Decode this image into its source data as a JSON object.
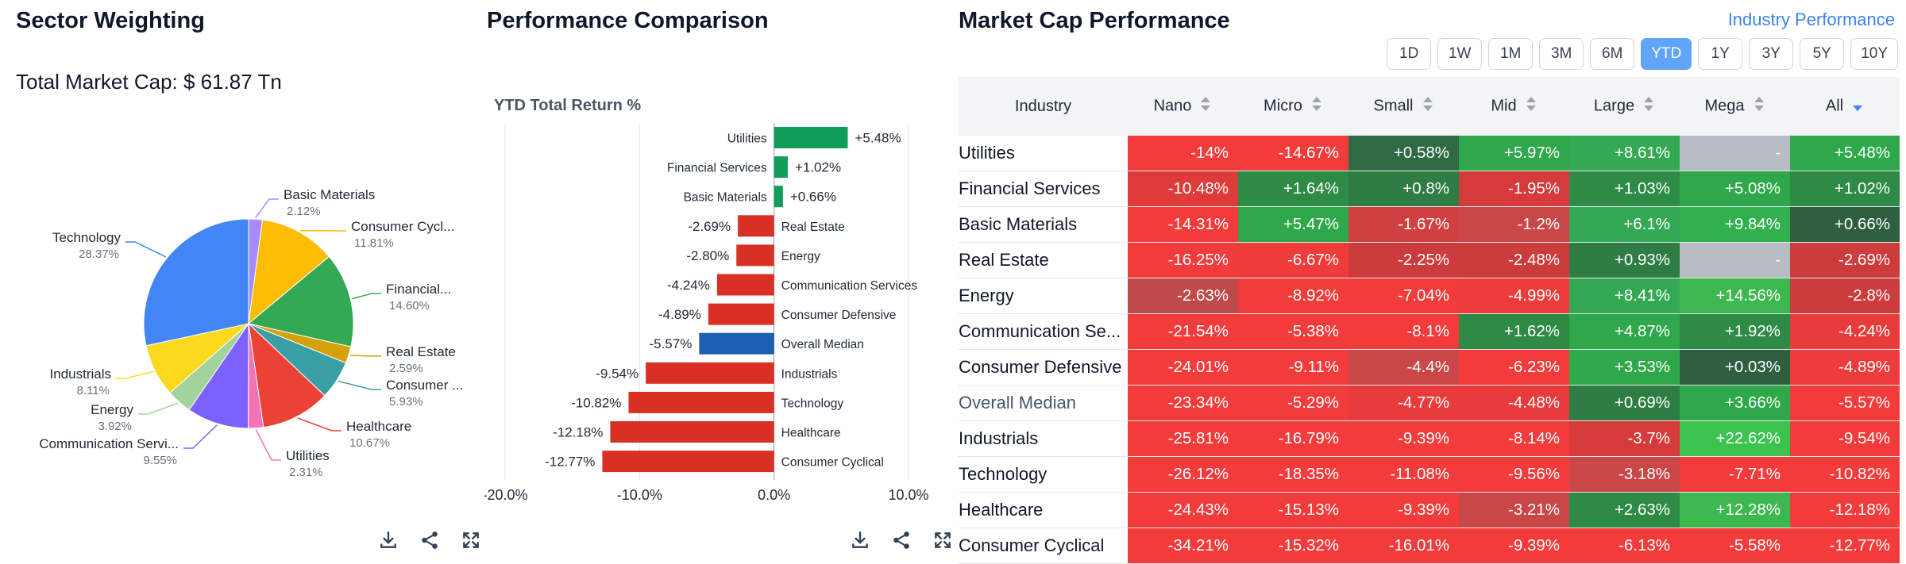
{
  "sector": {
    "title": "Sector Weighting",
    "total_label": "Total Market Cap: $ 61.87 Tn",
    "slices": [
      {
        "name": "Basic Materials",
        "label": "Basic Materials",
        "pct": 2.12,
        "pct_label": "2.12%",
        "color": "#a78bfa"
      },
      {
        "name": "Consumer Cyclical",
        "label": "Consumer Cycl...",
        "pct": 11.81,
        "pct_label": "11.81%",
        "color": "#fbbc04"
      },
      {
        "name": "Financial Services",
        "label": "Financial...",
        "pct": 14.6,
        "pct_label": "14.60%",
        "color": "#34a853"
      },
      {
        "name": "Real Estate",
        "label": "Real Estate",
        "pct": 2.59,
        "pct_label": "2.59%",
        "color": "#d4a10b"
      },
      {
        "name": "Consumer Defensive",
        "label": "Consumer ...",
        "pct": 5.93,
        "pct_label": "5.93%",
        "color": "#3a9ea5"
      },
      {
        "name": "Healthcare",
        "label": "Healthcare",
        "pct": 10.67,
        "pct_label": "10.67%",
        "color": "#ea4335"
      },
      {
        "name": "Utilities",
        "label": "Utilities",
        "pct": 2.31,
        "pct_label": "2.31%",
        "color": "#f472b6"
      },
      {
        "name": "Communication Services",
        "label": "Communication Servi...",
        "pct": 9.55,
        "pct_label": "9.55%",
        "color": "#7b61ff"
      },
      {
        "name": "Energy",
        "label": "Energy",
        "pct": 3.92,
        "pct_label": "3.92%",
        "color": "#a3d39c"
      },
      {
        "name": "Industrials",
        "label": "Industrials",
        "pct": 8.11,
        "pct_label": "8.11%",
        "color": "#fbd91f"
      },
      {
        "name": "Technology",
        "label": "Technology",
        "pct": 28.37,
        "pct_label": "28.37%",
        "color": "#4285f4"
      }
    ]
  },
  "comparison": {
    "title": "Performance Comparison",
    "chart_title": "YTD Total Return %",
    "bars": [
      {
        "label": "Utilities",
        "value": 5.48,
        "value_label": "+5.48%",
        "color": "#0f9d58"
      },
      {
        "label": "Financial Services",
        "value": 1.02,
        "value_label": "+1.02%",
        "color": "#0f9d58"
      },
      {
        "label": "Basic Materials",
        "value": 0.66,
        "value_label": "+0.66%",
        "color": "#0f9d58"
      },
      {
        "label": "Real Estate",
        "value": -2.69,
        "value_label": "-2.69%",
        "color": "#d93025"
      },
      {
        "label": "Energy",
        "value": -2.8,
        "value_label": "-2.80%",
        "color": "#d93025"
      },
      {
        "label": "Communication Services",
        "value": -4.24,
        "value_label": "-4.24%",
        "color": "#d93025"
      },
      {
        "label": "Consumer Defensive",
        "value": -4.89,
        "value_label": "-4.89%",
        "color": "#d93025"
      },
      {
        "label": "Overall Median",
        "value": -5.57,
        "value_label": "-5.57%",
        "color": "#1a5fb4"
      },
      {
        "label": "Industrials",
        "value": -9.54,
        "value_label": "-9.54%",
        "color": "#d93025"
      },
      {
        "label": "Technology",
        "value": -10.82,
        "value_label": "-10.82%",
        "color": "#d93025"
      },
      {
        "label": "Healthcare",
        "value": -12.18,
        "value_label": "-12.18%",
        "color": "#d93025"
      },
      {
        "label": "Consumer Cyclical",
        "value": -12.77,
        "value_label": "-12.77%",
        "color": "#d93025"
      }
    ],
    "xticks": [
      -20,
      -10,
      0,
      10
    ],
    "xtick_labels": [
      "-20.0%",
      "-10.0%",
      "0.0%",
      "10.0%"
    ],
    "xlim": [
      -20,
      10
    ]
  },
  "chart_data": [
    {
      "type": "pie",
      "title": "Sector Weighting",
      "categories": [
        "Basic Materials",
        "Consumer Cyclical",
        "Financial Services",
        "Real Estate",
        "Consumer Defensive",
        "Healthcare",
        "Utilities",
        "Communication Services",
        "Energy",
        "Industrials",
        "Technology"
      ],
      "values": [
        2.12,
        11.81,
        14.6,
        2.59,
        5.93,
        10.67,
        2.31,
        9.55,
        3.92,
        8.11,
        28.37
      ]
    },
    {
      "type": "bar",
      "title": "YTD Total Return %",
      "categories": [
        "Utilities",
        "Financial Services",
        "Basic Materials",
        "Real Estate",
        "Energy",
        "Communication Services",
        "Consumer Defensive",
        "Overall Median",
        "Industrials",
        "Technology",
        "Healthcare",
        "Consumer Cyclical"
      ],
      "values": [
        5.48,
        1.02,
        0.66,
        -2.69,
        -2.8,
        -4.24,
        -4.89,
        -5.57,
        -9.54,
        -10.82,
        -12.18,
        -12.77
      ],
      "xlim": [
        -20,
        10
      ]
    }
  ],
  "market": {
    "title": "Market Cap Performance",
    "link_label": "Industry Performance",
    "periods": [
      "1D",
      "1W",
      "1M",
      "3M",
      "6M",
      "YTD",
      "1Y",
      "3Y",
      "5Y",
      "10Y"
    ],
    "active_period": "YTD",
    "columns": [
      "Industry",
      "Nano",
      "Micro",
      "Small",
      "Mid",
      "Large",
      "Mega",
      "All"
    ],
    "rows": [
      {
        "name": "Utilities",
        "cells": [
          "-14%",
          "-14.67%",
          "+0.58%",
          "+5.97%",
          "+8.61%",
          "-",
          "+5.48%"
        ],
        "colors": [
          "#f23b3b",
          "#f23b3b",
          "#2f6a45",
          "#2ea84a",
          "#34a853",
          "#b8bcc4",
          "#2ea84a"
        ]
      },
      {
        "name": "Financial Services",
        "cells": [
          "-10.48%",
          "+1.64%",
          "+0.8%",
          "-1.95%",
          "+1.03%",
          "+5.08%",
          "+1.02%"
        ],
        "colors": [
          "#e03b3b",
          "#2e8b46",
          "#2e7d44",
          "#d63a3a",
          "#2e8b46",
          "#2ea84a",
          "#2e8b46"
        ]
      },
      {
        "name": "Basic Materials",
        "cells": [
          "-14.31%",
          "+5.47%",
          "-1.67%",
          "-1.2%",
          "+6.1%",
          "+9.84%",
          "+0.66%"
        ],
        "colors": [
          "#f23b3b",
          "#2ea84a",
          "#d14040",
          "#c94747",
          "#34a853",
          "#30b04f",
          "#2f5e40"
        ]
      },
      {
        "name": "Real Estate",
        "cells": [
          "-16.25%",
          "-6.67%",
          "-2.25%",
          "-2.48%",
          "+0.93%",
          "-",
          "-2.69%"
        ],
        "colors": [
          "#f23b3b",
          "#f03b3b",
          "#cc3c3c",
          "#cc3c3c",
          "#2e7d44",
          "#b8bcc4",
          "#cc3c3c"
        ]
      },
      {
        "name": "Energy",
        "cells": [
          "-2.63%",
          "-8.92%",
          "-7.04%",
          "-4.99%",
          "+8.41%",
          "+14.56%",
          "-2.8%"
        ],
        "colors": [
          "#bf4a4a",
          "#f23b3b",
          "#f23b3b",
          "#ee3b3b",
          "#34a853",
          "#3cb84f",
          "#cc3c3c"
        ]
      },
      {
        "name": "Communication Se...",
        "cells": [
          "-21.54%",
          "-5.38%",
          "-8.1%",
          "+1.62%",
          "+4.87%",
          "+1.92%",
          "-4.24%"
        ],
        "colors": [
          "#f23b3b",
          "#f23b3b",
          "#f23b3b",
          "#2e8b46",
          "#2ea84a",
          "#2e8b46",
          "#e83b3b"
        ]
      },
      {
        "name": "Consumer Defensive",
        "cells": [
          "-24.01%",
          "-9.11%",
          "-4.4%",
          "-6.23%",
          "+3.53%",
          "+0.03%",
          "-4.89%"
        ],
        "colors": [
          "#f23b3b",
          "#f23b3b",
          "#c94747",
          "#f23b3b",
          "#2ea84a",
          "#2f5e40",
          "#ee3b3b"
        ]
      },
      {
        "name": "Overall Median",
        "cells": [
          "-23.34%",
          "-5.29%",
          "-4.77%",
          "-4.48%",
          "+0.69%",
          "+3.66%",
          "-5.57%"
        ],
        "colors": [
          "#f23b3b",
          "#f23b3b",
          "#e83b3b",
          "#e83b3b",
          "#2e7d44",
          "#2ea84a",
          "#f23b3b"
        ]
      },
      {
        "name": "Industrials",
        "cells": [
          "-25.81%",
          "-16.79%",
          "-9.39%",
          "-8.14%",
          "-3.7%",
          "+22.62%",
          "-9.54%"
        ],
        "colors": [
          "#f23b3b",
          "#f23b3b",
          "#f23b3b",
          "#f23b3b",
          "#d63a3a",
          "#3cc24f",
          "#f23b3b"
        ]
      },
      {
        "name": "Technology",
        "cells": [
          "-26.12%",
          "-18.35%",
          "-11.08%",
          "-9.56%",
          "-3.18%",
          "-7.71%",
          "-10.82%"
        ],
        "colors": [
          "#f23b3b",
          "#f23b3b",
          "#f23b3b",
          "#f23b3b",
          "#c94747",
          "#f23b3b",
          "#f23b3b"
        ]
      },
      {
        "name": "Healthcare",
        "cells": [
          "-24.43%",
          "-15.13%",
          "-9.39%",
          "-3.21%",
          "+2.63%",
          "+12.28%",
          "-12.18%"
        ],
        "colors": [
          "#f23b3b",
          "#f23b3b",
          "#f23b3b",
          "#c94747",
          "#2e8b46",
          "#3cb84f",
          "#f23b3b"
        ]
      },
      {
        "name": "Consumer Cyclical",
        "cells": [
          "-34.21%",
          "-15.32%",
          "-16.01%",
          "-9.39%",
          "-6.13%",
          "-5.58%",
          "-12.77%"
        ],
        "colors": [
          "#f23b3b",
          "#f23b3b",
          "#f23b3b",
          "#f23b3b",
          "#f23b3b",
          "#f23b3b",
          "#f23b3b"
        ]
      }
    ]
  },
  "icons": [
    "download-icon",
    "share-icon",
    "expand-icon"
  ]
}
